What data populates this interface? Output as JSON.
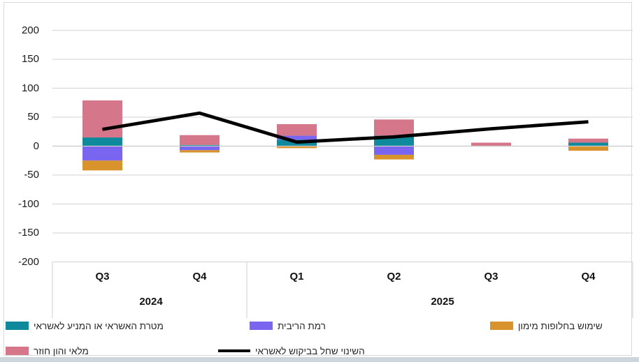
{
  "chart_data": {
    "type": "bar",
    "subtype": "stacked-bar-with-line-overlay",
    "categories": [
      "Q3",
      "Q4",
      "Q1",
      "Q2",
      "Q3",
      "Q4"
    ],
    "year_groups": [
      {
        "label": "2024",
        "span": 2
      },
      {
        "label": "2025",
        "span": 4
      }
    ],
    "bar_series": [
      {
        "key": "credit-purpose",
        "name": "מטרת האשראי או המניע לאשראי",
        "color": "#0f8a9c",
        "values": [
          15,
          2,
          11,
          18,
          0,
          6
        ]
      },
      {
        "key": "interest-rate",
        "name": "רמת הריבית",
        "color": "#7a65f0",
        "values": [
          -25,
          -7,
          7,
          -15,
          0,
          0
        ]
      },
      {
        "key": "financing-alternatives",
        "name": "שימוש בחלופות מימון",
        "color": "#d9932d",
        "values": [
          -17,
          -4,
          -3.5,
          -8,
          0,
          -8
        ]
      },
      {
        "key": "inventory-working-capital",
        "name": "מלאי והון חוזר",
        "color": "#d5768b",
        "values": [
          64,
          17,
          20,
          28,
          6,
          7
        ]
      }
    ],
    "line_series": {
      "key": "credit-demand-change",
      "name": "השינוי שחל בביקוש לאשראי",
      "color": "#000000",
      "values": [
        29,
        57,
        7,
        16,
        30,
        42
      ]
    },
    "y_axis": {
      "min": -200,
      "max": 200,
      "step": 50,
      "tick_labels": [
        "200",
        "150",
        "100",
        "50",
        "0",
        "-50",
        "-100",
        "-150",
        "-200"
      ]
    },
    "grid": true,
    "legend_position": "bottom",
    "title": ""
  },
  "colors": {
    "gridline": "#d9d9d9",
    "zero_line": "#cccccc",
    "frame_border": "#d9d9d9",
    "bottom_strip": "#cdd5dd"
  }
}
